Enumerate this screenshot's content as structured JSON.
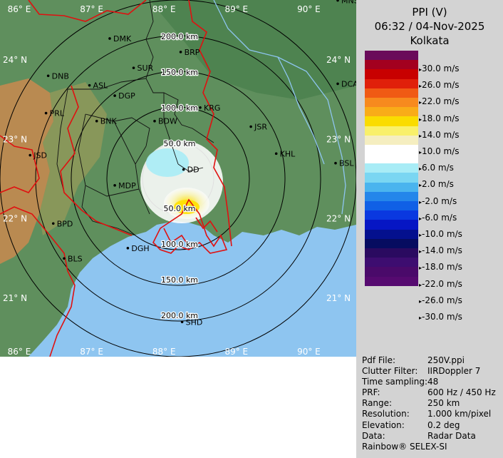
{
  "header": {
    "product": "PPI (V)",
    "datetime": "06:32 / 04-Nov-2025",
    "station": "Kolkata"
  },
  "legend": {
    "colors": [
      "#6a0b5a",
      "#a3001f",
      "#c80000",
      "#e0200a",
      "#f05a14",
      "#f78a1e",
      "#f9ac18",
      "#fadc00",
      "#f9f06a",
      "#f5eec0",
      "#ffffff",
      "#ffffff",
      "#a8ecf6",
      "#7ad6f2",
      "#4ab4ee",
      "#2486ea",
      "#1060e6",
      "#0a38e0",
      "#0616c4",
      "#04108e",
      "#060c60",
      "#2a0a60",
      "#3d0d70",
      "#4a0a6a",
      "#560a70"
    ],
    "labels": [
      "30.0 m/s",
      "26.0 m/s",
      "22.0 m/s",
      "18.0 m/s",
      "14.0 m/s",
      "10.0 m/s",
      "6.0 m/s",
      "2.0 m/s",
      "-2.0 m/s",
      "-6.0 m/s",
      "-10.0 m/s",
      "-14.0 m/s",
      "-18.0 m/s",
      "-22.0 m/s",
      "-26.0 m/s",
      "-30.0 m/s"
    ]
  },
  "map": {
    "lon_labels": [
      "86° E",
      "87° E",
      "88° E",
      "89° E",
      "90° E"
    ],
    "lat_labels": [
      "24° N",
      "23° N",
      "22° N",
      "21° N"
    ],
    "range_labels": [
      "50.0 km",
      "100.0 km",
      "150.0 km",
      "200.0 km"
    ],
    "cities": [
      {
        "name": "MNS",
        "lon": 90.4,
        "lat": 24.75
      },
      {
        "name": "DMK",
        "lon": 87.25,
        "lat": 24.27
      },
      {
        "name": "BRP",
        "lon": 88.23,
        "lat": 24.1
      },
      {
        "name": "SUR",
        "lon": 87.58,
        "lat": 23.9
      },
      {
        "name": "DNB",
        "lon": 86.4,
        "lat": 23.8
      },
      {
        "name": "DCA",
        "lon": 90.4,
        "lat": 23.7
      },
      {
        "name": "ASL",
        "lon": 86.97,
        "lat": 23.68
      },
      {
        "name": "DGP",
        "lon": 87.32,
        "lat": 23.55
      },
      {
        "name": "KRG",
        "lon": 88.5,
        "lat": 23.4
      },
      {
        "name": "PRL",
        "lon": 86.37,
        "lat": 23.33
      },
      {
        "name": "BNK",
        "lon": 87.07,
        "lat": 23.23
      },
      {
        "name": "BDW",
        "lon": 87.87,
        "lat": 23.23
      },
      {
        "name": "JSR",
        "lon": 89.2,
        "lat": 23.16
      },
      {
        "name": "KHL",
        "lon": 89.55,
        "lat": 22.82
      },
      {
        "name": "JSD",
        "lon": 86.15,
        "lat": 22.8
      },
      {
        "name": "BSL",
        "lon": 90.37,
        "lat": 22.7
      },
      {
        "name": "DD",
        "lon": 88.27,
        "lat": 22.62
      },
      {
        "name": "MDP",
        "lon": 87.32,
        "lat": 22.42
      },
      {
        "name": "BPD",
        "lon": 86.47,
        "lat": 21.94
      },
      {
        "name": "DGH",
        "lon": 87.5,
        "lat": 21.63
      },
      {
        "name": "BLS",
        "lon": 86.62,
        "lat": 21.5
      },
      {
        "name": "SHD",
        "lon": 88.25,
        "lat": 20.7
      }
    ]
  },
  "meta": [
    {
      "key": "Pdf File:",
      "value": "250V.ppi"
    },
    {
      "key": "Clutter Filter:",
      "value": "IIRDoppler 7"
    },
    {
      "key": "Time sampling:",
      "value": "48"
    },
    {
      "key": "PRF:",
      "value": "600 Hz / 450 Hz"
    },
    {
      "key": "Range:",
      "value": "250 km"
    },
    {
      "key": "Resolution:",
      "value": "1.000 km/pixel"
    },
    {
      "key": "Elevation:",
      "value": "0.2 deg"
    },
    {
      "key": "Data:",
      "value": "Radar Data"
    }
  ],
  "footer": "Rainbow® SELEX-SI"
}
